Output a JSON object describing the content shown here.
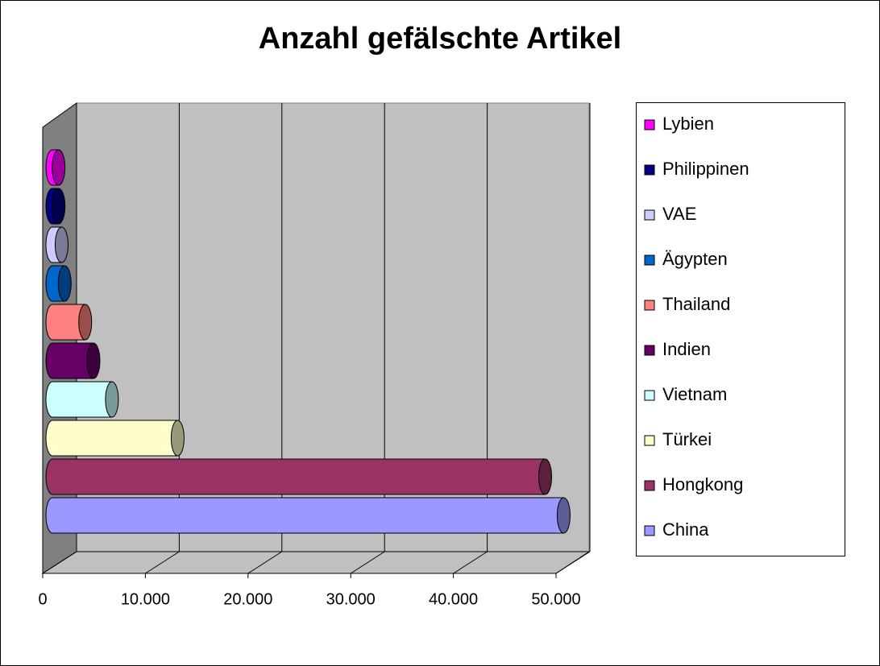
{
  "chart_data": {
    "type": "bar3d_horizontal",
    "title": "Anzahl gefälschte Artikel",
    "categories": [
      "China",
      "Hongkong",
      "Türkei",
      "Vietnam",
      "Indien",
      "Thailand",
      "Ägypten",
      "VAE",
      "Philippinen",
      "Lybien"
    ],
    "values": [
      49800,
      48000,
      12200,
      5800,
      4000,
      3200,
      1200,
      900,
      600,
      600
    ],
    "colors": [
      "#9999ff",
      "#993366",
      "#ffffcc",
      "#ccffff",
      "#660066",
      "#ff8080",
      "#0066cc",
      "#ccccff",
      "#000080",
      "#ff00ff"
    ],
    "xlim": [
      0,
      50000
    ],
    "xticks": [
      0,
      {
        "value": 10000,
        "label": "10.000"
      },
      {
        "value": 20000,
        "label": "20.000"
      },
      {
        "value": 30000,
        "label": "30.000"
      },
      {
        "value": 40000,
        "label": "40.000"
      },
      {
        "value": 50000,
        "label": "50.000"
      }
    ],
    "grid": true,
    "legend": "right"
  }
}
